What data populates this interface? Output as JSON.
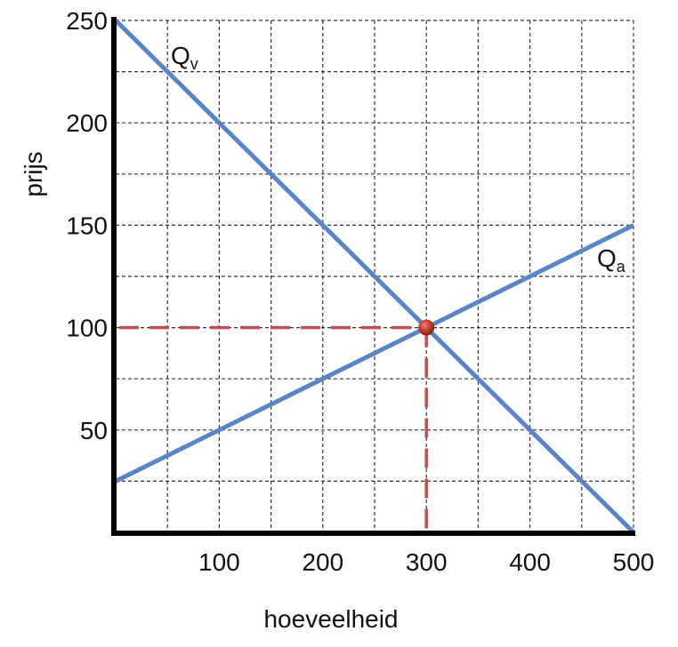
{
  "chart_data": {
    "type": "line",
    "title": "",
    "xlabel": "hoeveelheid",
    "ylabel": "prijs",
    "xlim": [
      0,
      500
    ],
    "ylim": [
      0,
      250
    ],
    "grid": true,
    "grid_step_x": 50,
    "grid_step_y": 25,
    "x_ticks": [
      100,
      200,
      300,
      400,
      500
    ],
    "y_ticks": [
      50,
      100,
      150,
      200,
      250
    ],
    "x_tick_labels": [
      "100",
      "200",
      "300",
      "400",
      "500"
    ],
    "y_tick_labels": [
      "50",
      "100",
      "150",
      "200",
      "250"
    ],
    "series": [
      {
        "name": "Qv",
        "label_main": "Q",
        "label_sub": "v",
        "x": [
          0,
          500
        ],
        "y": [
          250,
          0
        ],
        "color": "#5b84c4"
      },
      {
        "name": "Qa",
        "label_main": "Q",
        "label_sub": "a",
        "x": [
          0,
          500
        ],
        "y": [
          25,
          150
        ],
        "color": "#5b84c4"
      }
    ],
    "equilibrium": {
      "x": 300,
      "y": 100,
      "marker_color": "#c0392b",
      "guide_color": "#c0504d"
    }
  }
}
